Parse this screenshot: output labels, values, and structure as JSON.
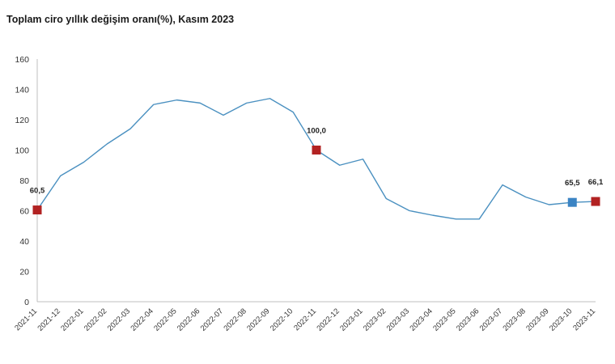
{
  "title": "Toplam ciro yıllık değişim oranı(%), Kasım 2023",
  "chart_data": {
    "type": "line",
    "title": "Toplam ciro yıllık değişim oranı(%), Kasım 2023",
    "xlabel": "",
    "ylabel": "",
    "ylim": [
      0,
      160
    ],
    "y_ticks": [
      "0",
      "20",
      "40",
      "60",
      "80",
      "100",
      "120",
      "140",
      "160"
    ],
    "grid": false,
    "categories": [
      "2021-11",
      "2021-12",
      "2022-01",
      "2022-02",
      "2022-03",
      "2022-04",
      "2022-05",
      "2022-06",
      "2022-07",
      "2022-08",
      "2022-09",
      "2022-10",
      "2022-11",
      "2022-12",
      "2023-01",
      "2023-02",
      "2023-03",
      "2023-04",
      "2023-05",
      "2023-06",
      "2023-07",
      "2023-08",
      "2023-09",
      "2023-10",
      "2023-11"
    ],
    "series": [
      {
        "values": [
          60.5,
          83,
          92,
          104,
          114,
          130,
          133,
          131,
          123,
          131,
          134,
          125,
          100.0,
          90,
          94,
          68,
          60,
          57,
          54.5,
          54.5,
          77,
          69,
          64,
          65.5,
          66.1
        ],
        "color": "#4a90c0"
      }
    ],
    "markers": [
      {
        "index": 0,
        "label": "60,5",
        "color": "#b22222"
      },
      {
        "index": 12,
        "label": "100,0",
        "color": "#b22222"
      },
      {
        "index": 23,
        "label": "65,5",
        "color": "#3b84c4"
      },
      {
        "index": 24,
        "label": "66,1",
        "color": "#b22222"
      }
    ]
  }
}
